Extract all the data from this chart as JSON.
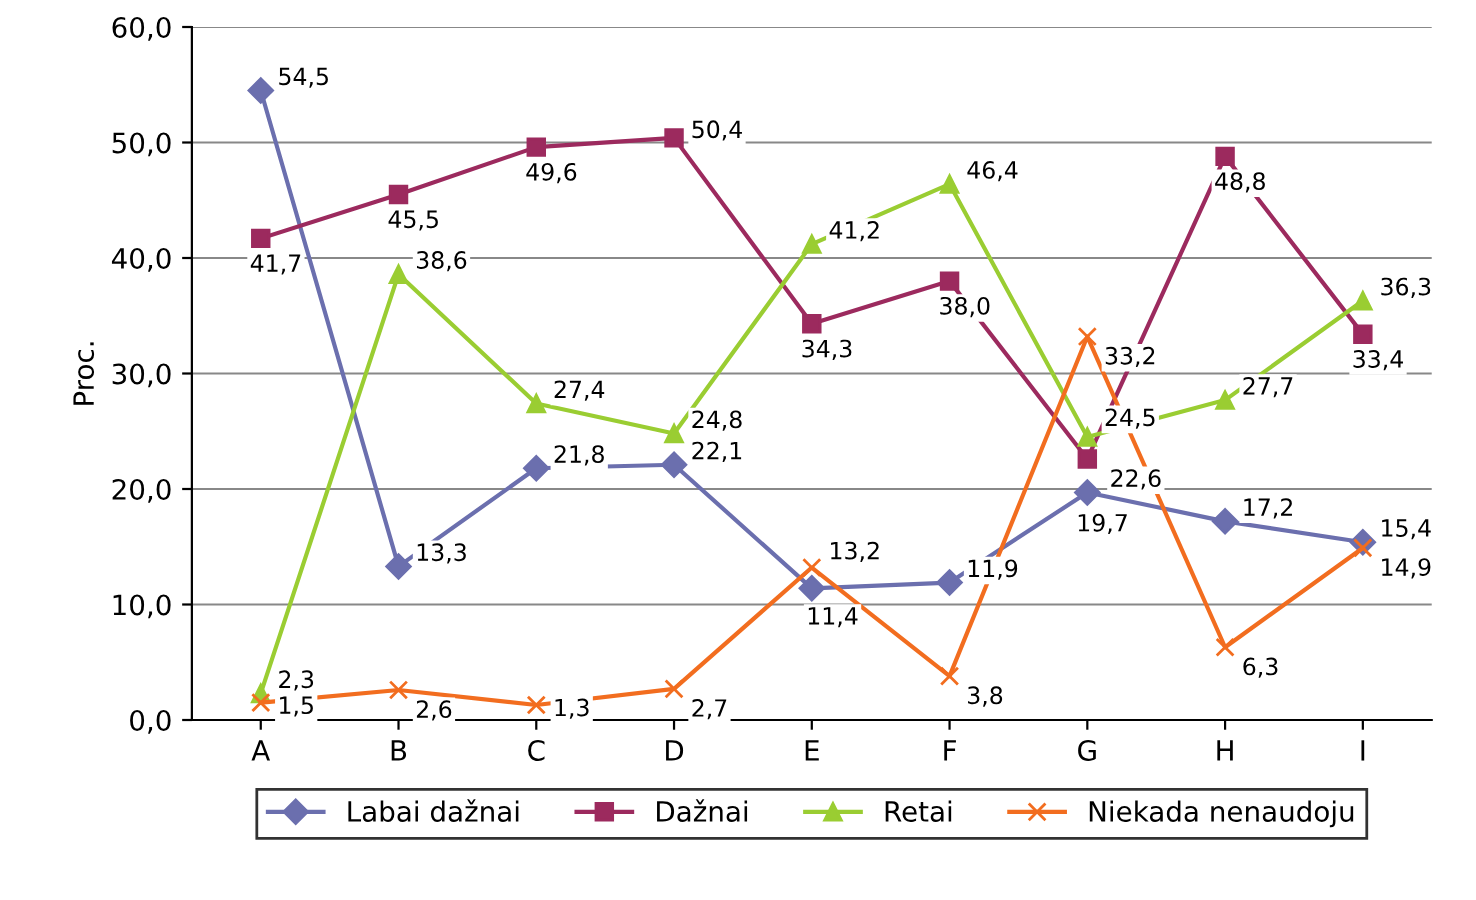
{
  "chart_data": {
    "type": "line",
    "ylabel": "Proc.",
    "categories": [
      "A",
      "B",
      "C",
      "D",
      "E",
      "F",
      "G",
      "H",
      "I"
    ],
    "ylim": [
      0,
      60
    ],
    "yticks": [
      {
        "value": 0,
        "label": "0,0"
      },
      {
        "value": 10,
        "label": "10,0"
      },
      {
        "value": 20,
        "label": "20,0"
      },
      {
        "value": 30,
        "label": "30,0"
      },
      {
        "value": 40,
        "label": "40,0"
      },
      {
        "value": 50,
        "label": "50,0"
      },
      {
        "value": 60,
        "label": "60,0"
      }
    ],
    "grid": "y",
    "legend": "bottom",
    "series": [
      {
        "name": "Labai dažnai",
        "color": "#6b6fae",
        "marker": "diamond",
        "values": [
          54.5,
          13.3,
          21.8,
          22.1,
          11.4,
          11.9,
          19.7,
          17.2,
          15.4
        ],
        "value_labels": [
          "54,5",
          "13,3",
          "21,8",
          "22,1",
          "11,4",
          "11,9",
          "19,7",
          "17,2",
          "15,4"
        ]
      },
      {
        "name": "Dažnai",
        "color": "#9c2a5e",
        "marker": "square",
        "values": [
          41.7,
          45.5,
          49.6,
          50.4,
          34.3,
          38.0,
          22.6,
          48.8,
          33.4
        ],
        "value_labels": [
          "41,7",
          "45,5",
          "49,6",
          "50,4",
          "34,3",
          "38,0",
          "22,6",
          "48,8",
          "33,4"
        ]
      },
      {
        "name": "Retai",
        "color": "#9acd32",
        "marker": "triangle",
        "values": [
          2.3,
          38.6,
          27.4,
          24.8,
          41.2,
          46.4,
          24.5,
          27.7,
          36.3
        ],
        "value_labels": [
          "2,3",
          "38,6",
          "27,4",
          "24,8",
          "41,2",
          "46,4",
          "24,5",
          "27,7",
          "36,3"
        ]
      },
      {
        "name": "Niekada nenaudoju",
        "color": "#f26d1f",
        "marker": "cross",
        "values": [
          1.5,
          2.6,
          1.3,
          2.7,
          13.2,
          3.8,
          33.2,
          6.3,
          14.9
        ],
        "value_labels": [
          "1,5",
          "2,6",
          "1,3",
          "2,7",
          "13,2",
          "3,8",
          "33,2",
          "6,3",
          "14,9"
        ]
      }
    ]
  }
}
